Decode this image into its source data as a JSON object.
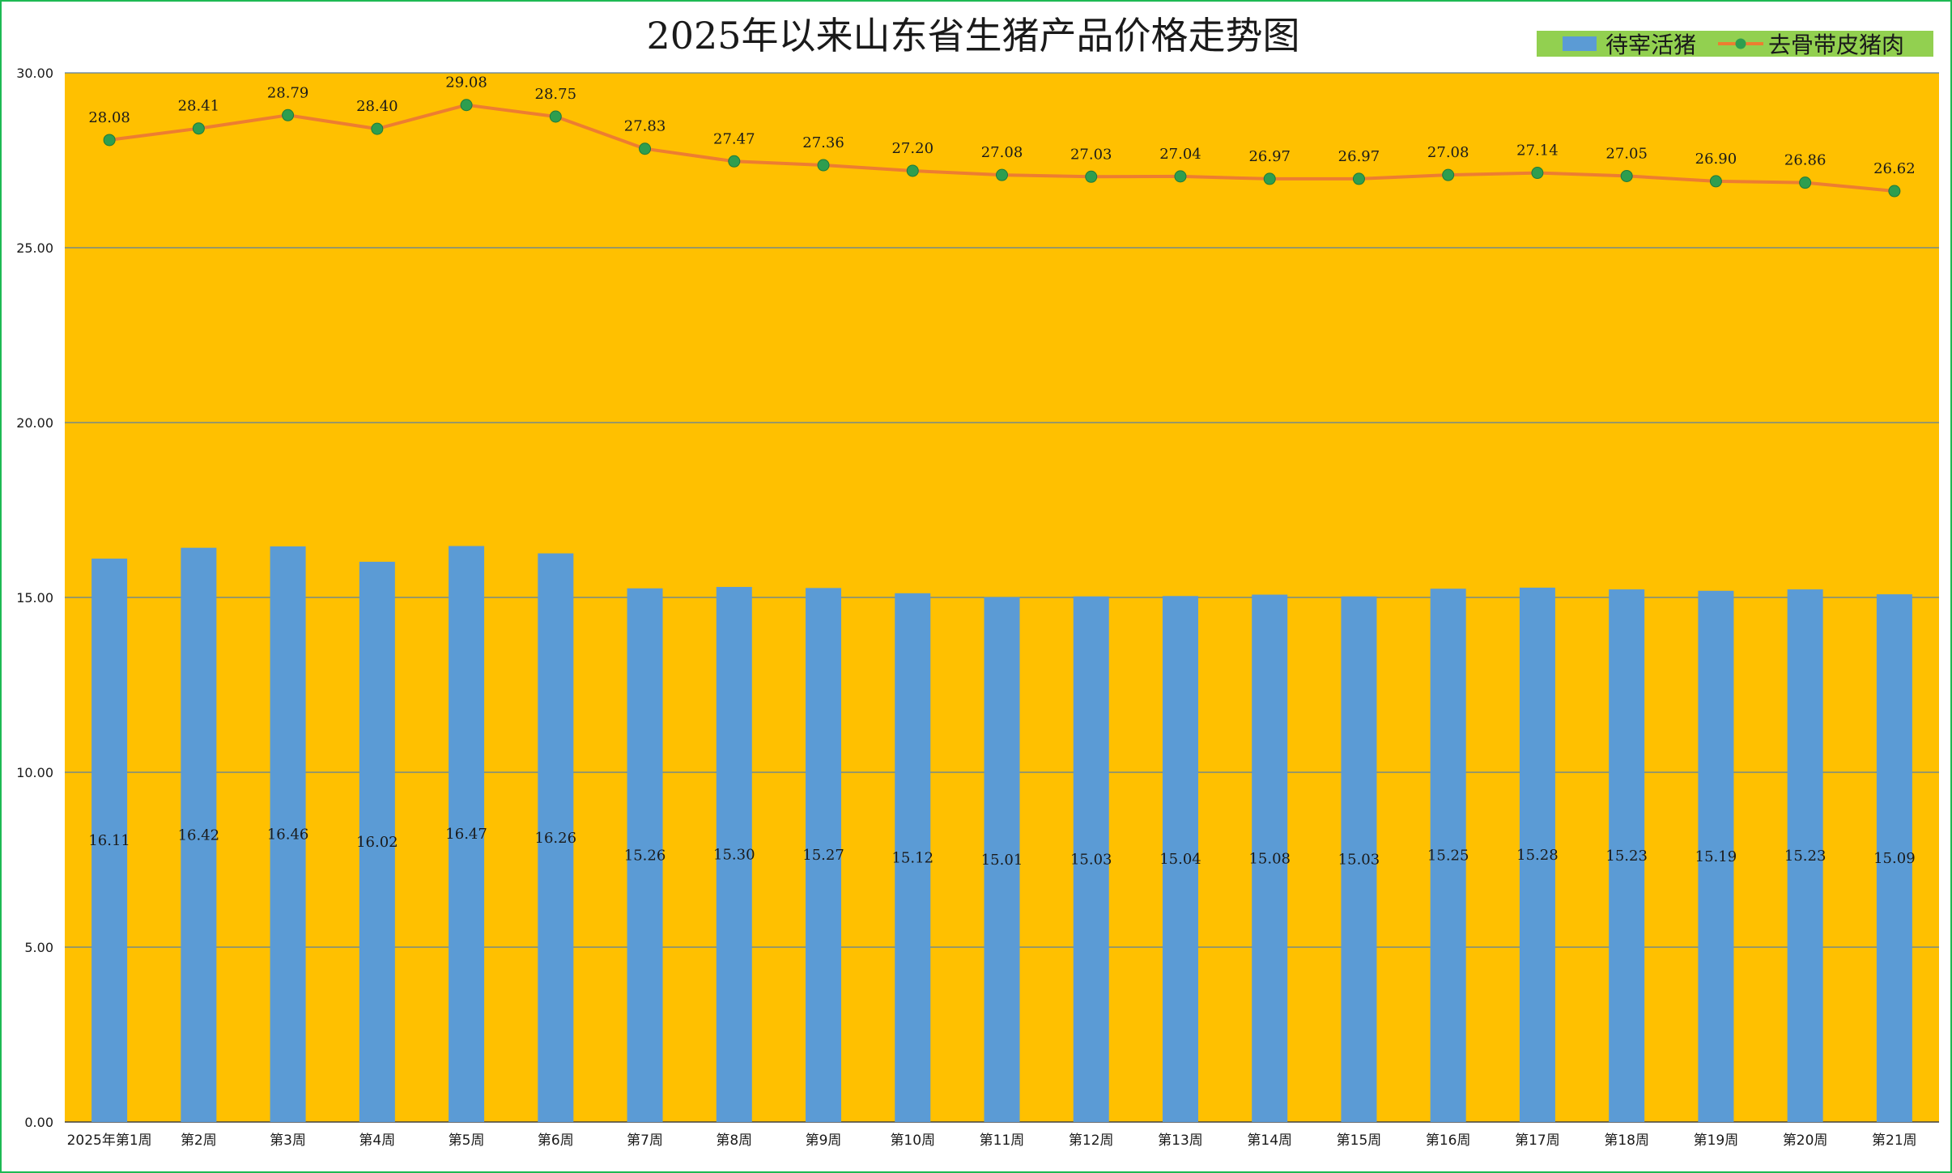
{
  "chart_data": {
    "type": "bar+line",
    "title": "2025年以来山东省生猪产品价格走势图",
    "categories": [
      "2025年第1周",
      "第2周",
      "第3周",
      "第4周",
      "第5周",
      "第6周",
      "第7周",
      "第8周",
      "第9周",
      "第10周",
      "第11周",
      "第12周",
      "第13周",
      "第14周",
      "第15周",
      "第16周",
      "第17周",
      "第18周",
      "第19周",
      "第20周",
      "第21周"
    ],
    "series": [
      {
        "name": "待宰活猪",
        "type": "bar",
        "color": "#5b9bd5",
        "values": [
          16.11,
          16.42,
          16.46,
          16.02,
          16.47,
          16.26,
          15.26,
          15.3,
          15.27,
          15.12,
          15.01,
          15.03,
          15.04,
          15.08,
          15.03,
          15.25,
          15.28,
          15.23,
          15.19,
          15.23,
          15.09
        ],
        "labels": [
          "16.11",
          "16.42",
          "16.46",
          "16.02",
          "16.47",
          "16.26",
          "15.26",
          "15.30",
          "15.27",
          "15.12",
          "15.01",
          "15.03",
          "15.04",
          "15.08",
          "15.03",
          "15.25",
          "15.28",
          "15.23",
          "15.19",
          "15.23",
          "15.09"
        ]
      },
      {
        "name": "去骨带皮猪肉",
        "type": "line",
        "color": "#ed7d31",
        "marker_color": "#2e9e4f",
        "values": [
          28.08,
          28.41,
          28.79,
          28.4,
          29.08,
          28.75,
          27.83,
          27.47,
          27.36,
          27.2,
          27.08,
          27.03,
          27.04,
          26.97,
          26.97,
          27.08,
          27.14,
          27.05,
          26.9,
          26.86,
          26.62
        ],
        "labels": [
          "28.08",
          "28.41",
          "28.79",
          "28.40",
          "29.08",
          "28.75",
          "27.83",
          "27.47",
          "27.36",
          "27.20",
          "27.08",
          "27.03",
          "27.04",
          "26.97",
          "26.97",
          "27.08",
          "27.14",
          "27.05",
          "26.90",
          "26.86",
          "26.62"
        ]
      }
    ],
    "ylim": [
      0,
      30
    ],
    "yticks": [
      0,
      5,
      10,
      15,
      20,
      25,
      30
    ],
    "ytick_labels": [
      "0.00",
      "5.00",
      "10.00",
      "15.00",
      "20.00",
      "25.00",
      "30.00"
    ],
    "xlabel": "",
    "ylabel": "",
    "grid": true,
    "legend": "top-right",
    "colors": {
      "plot_background": "#ffc000",
      "legend_background": "#92d050",
      "gridline": "#5a7fa0",
      "frame_border": "#1db954"
    }
  }
}
